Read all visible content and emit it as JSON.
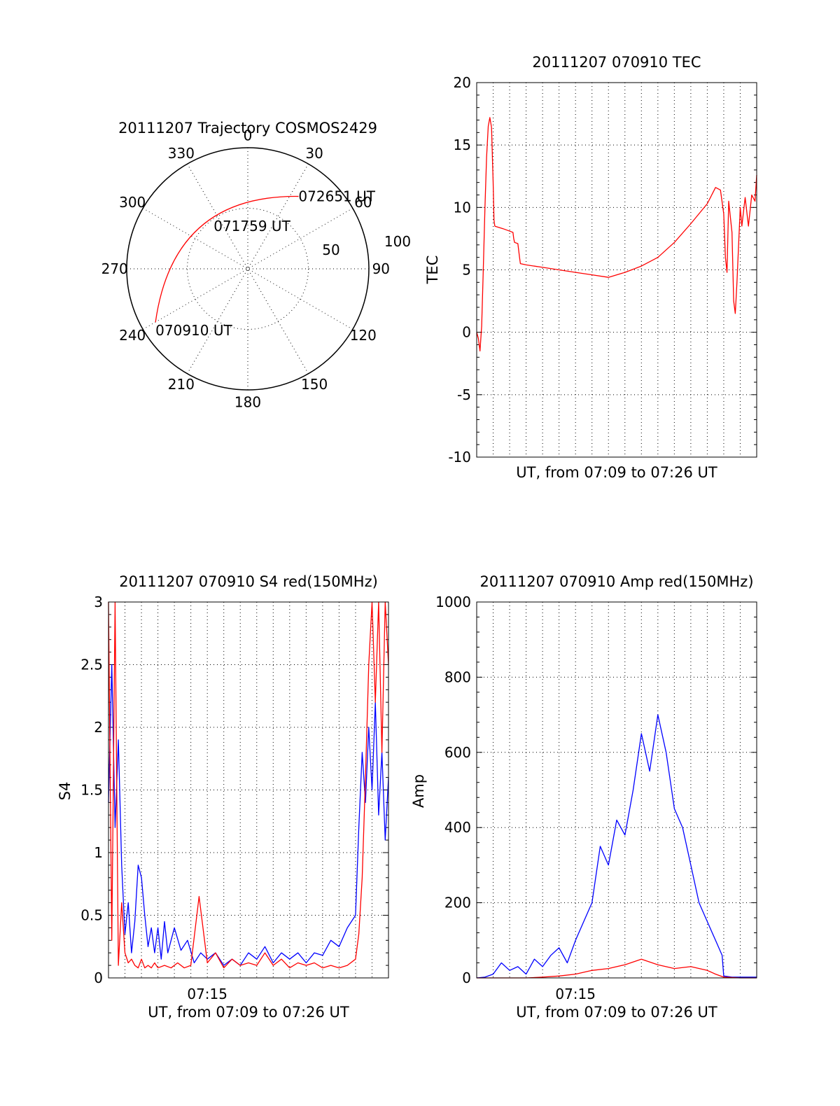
{
  "chart_data": [
    {
      "type": "polar",
      "title": "20111207 Trajectory COSMOS2429",
      "azimuth_labels": [
        "0",
        "30",
        "60",
        "90",
        "120",
        "150",
        "180",
        "210",
        "240",
        "270",
        "300",
        "330"
      ],
      "radius_labels": [
        "50",
        "100"
      ],
      "points": [
        {
          "label": "070910 UT",
          "az": 240,
          "r": 88
        },
        {
          "label": "071759 UT",
          "az": 310,
          "r": 50
        },
        {
          "label": "072651 UT",
          "az": 35,
          "r": 73
        }
      ],
      "colors": {
        "track": "#ff0000",
        "axes": "#000000"
      }
    },
    {
      "type": "line",
      "title": "20111207 070910 TEC",
      "xlabel": "UT, from 07:09 to 07:26 UT",
      "ylabel": "TEC",
      "xlim": [
        0,
        17
      ],
      "ylim": [
        -10,
        20
      ],
      "yticks": [
        "20",
        "15",
        "10",
        "5",
        "0",
        "-5",
        "-10"
      ],
      "xticks": [],
      "grid": true,
      "series": [
        {
          "color": "#ff0000",
          "x": [
            0,
            0.1,
            0.2,
            0.3,
            0.4,
            0.5,
            0.6,
            0.7,
            0.8,
            0.9,
            1.0,
            1.05,
            1.1,
            1.6,
            2.0,
            2.2,
            2.25,
            2.3,
            2.5,
            2.6,
            2.65,
            3,
            4,
            5,
            6,
            7,
            8,
            9,
            10,
            11,
            12,
            13,
            14,
            14.5,
            14.8,
            15.0,
            15.1,
            15.2,
            15.3,
            15.5,
            15.6,
            15.7,
            15.8,
            16.0,
            16.1,
            16.3,
            16.5,
            16.7,
            16.9,
            17.0
          ],
          "y": [
            0,
            -0.5,
            -1.5,
            0.5,
            5,
            10,
            14,
            16.5,
            17.2,
            16.4,
            12,
            9,
            8.5,
            8.3,
            8.1,
            8,
            7.5,
            7.2,
            7.1,
            6,
            5.5,
            5.4,
            5.2,
            5.0,
            4.8,
            4.6,
            4.4,
            4.8,
            5.3,
            6.0,
            7.2,
            8.7,
            10.3,
            11.6,
            11.4,
            9.5,
            6.0,
            4.8,
            10.5,
            8,
            2.5,
            1.5,
            4,
            10,
            8.5,
            10.8,
            8.5,
            11,
            10.5,
            12.6
          ]
        }
      ]
    },
    {
      "type": "line",
      "title": "20111207 070910 S4 red(150MHz)",
      "xlabel": "UT, from 07:09 to 07:26 UT",
      "ylabel": "S4",
      "xlim": [
        0,
        17
      ],
      "ylim": [
        0,
        3
      ],
      "yticks": [
        "3",
        "2.5",
        "2",
        "1.5",
        "1",
        "0.5",
        "0"
      ],
      "xticks": [
        "07:15"
      ],
      "grid": true,
      "series": [
        {
          "color": "#0000ff",
          "x": [
            0,
            0.2,
            0.4,
            0.6,
            0.8,
            1.0,
            1.2,
            1.4,
            1.6,
            1.8,
            2.0,
            2.2,
            2.4,
            2.6,
            2.8,
            3.0,
            3.2,
            3.4,
            3.6,
            3.8,
            4.0,
            4.4,
            4.8,
            5.2,
            5.6,
            6.0,
            6.5,
            7.0,
            7.5,
            8.0,
            8.5,
            9.0,
            9.5,
            10.0,
            10.5,
            11.0,
            11.5,
            12.0,
            12.5,
            13.0,
            13.5,
            14.0,
            14.5,
            15.0,
            15.2,
            15.4,
            15.6,
            15.8,
            16.0,
            16.2,
            16.4,
            16.6,
            16.8,
            17.0
          ],
          "y": [
            1.4,
            2.5,
            1.2,
            1.9,
            0.9,
            0.35,
            0.6,
            0.2,
            0.45,
            0.9,
            0.8,
            0.5,
            0.25,
            0.4,
            0.2,
            0.4,
            0.15,
            0.45,
            0.2,
            0.3,
            0.4,
            0.22,
            0.3,
            0.12,
            0.2,
            0.15,
            0.2,
            0.1,
            0.15,
            0.1,
            0.2,
            0.15,
            0.25,
            0.12,
            0.2,
            0.15,
            0.2,
            0.12,
            0.2,
            0.18,
            0.3,
            0.25,
            0.4,
            0.5,
            1.2,
            1.8,
            1.4,
            2.0,
            1.5,
            2.2,
            1.3,
            1.8,
            1.1,
            1.6
          ]
        },
        {
          "color": "#ff0000",
          "x": [
            0,
            0.2,
            0.4,
            0.6,
            0.8,
            1.0,
            1.2,
            1.4,
            1.6,
            1.8,
            2.0,
            2.2,
            2.4,
            2.6,
            2.8,
            3.0,
            3.4,
            3.8,
            4.2,
            4.6,
            5.0,
            5.5,
            6.0,
            6.5,
            7.0,
            7.5,
            8.0,
            8.5,
            9.0,
            9.5,
            10.0,
            10.5,
            11.0,
            11.5,
            12.0,
            12.5,
            13.0,
            13.5,
            14.0,
            14.5,
            15.0,
            15.2,
            15.4,
            15.6,
            15.8,
            16.0,
            16.2,
            16.4,
            16.6,
            16.8,
            17.0
          ],
          "y": [
            3,
            0.3,
            3,
            0.1,
            0.6,
            0.2,
            0.12,
            0.15,
            0.1,
            0.08,
            0.15,
            0.08,
            0.1,
            0.08,
            0.12,
            0.08,
            0.1,
            0.08,
            0.12,
            0.08,
            0.1,
            0.65,
            0.12,
            0.2,
            0.08,
            0.15,
            0.1,
            0.12,
            0.1,
            0.2,
            0.1,
            0.15,
            0.08,
            0.12,
            0.1,
            0.12,
            0.08,
            0.1,
            0.08,
            0.1,
            0.15,
            0.35,
            0.8,
            1.6,
            2.5,
            3,
            2.2,
            3,
            1.8,
            3,
            2.5
          ]
        }
      ]
    },
    {
      "type": "line",
      "title": "20111207 070910 Amp red(150MHz)",
      "xlabel": "UT, from 07:09 to 07:26 UT",
      "ylabel": "Amp",
      "xlim": [
        0,
        17
      ],
      "ylim": [
        0,
        1000
      ],
      "yticks": [
        "1000",
        "800",
        "600",
        "400",
        "200",
        "0"
      ],
      "xticks": [
        "07:15"
      ],
      "grid": true,
      "series": [
        {
          "color": "#0000ff",
          "x": [
            0,
            0.5,
            1.0,
            1.5,
            2.0,
            2.5,
            3.0,
            3.5,
            4.0,
            4.5,
            5.0,
            5.5,
            6.0,
            6.5,
            7.0,
            7.5,
            8.0,
            8.5,
            9.0,
            9.5,
            10.0,
            10.5,
            11.0,
            11.5,
            12.0,
            12.5,
            13.0,
            13.5,
            14.0,
            14.5,
            14.9,
            15.0,
            15.5,
            16.0,
            16.5,
            17.0
          ],
          "y": [
            0,
            2,
            10,
            40,
            20,
            30,
            10,
            50,
            30,
            60,
            80,
            40,
            100,
            150,
            200,
            350,
            300,
            420,
            380,
            500,
            650,
            550,
            700,
            600,
            450,
            400,
            300,
            200,
            150,
            100,
            60,
            5,
            2,
            2,
            2,
            2
          ]
        },
        {
          "color": "#ff0000",
          "x": [
            0,
            1,
            2,
            3,
            4,
            5,
            6,
            7,
            8,
            9,
            10,
            11,
            12,
            13,
            14,
            14.5,
            15,
            16,
            17
          ],
          "y": [
            0,
            0,
            0,
            0,
            2,
            5,
            10,
            20,
            25,
            35,
            50,
            35,
            25,
            30,
            20,
            10,
            2,
            0,
            0
          ]
        }
      ]
    }
  ]
}
